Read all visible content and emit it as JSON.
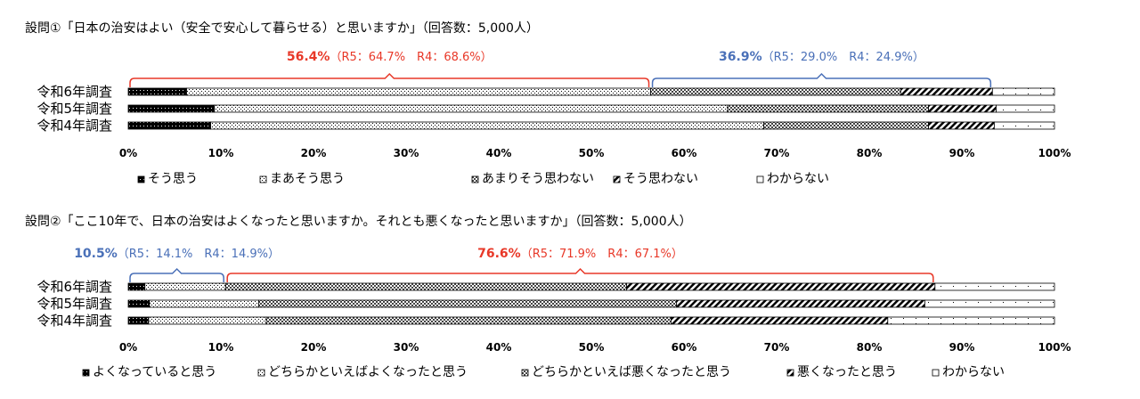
{
  "chart_data": [
    {
      "type": "bar",
      "stacked": true,
      "orientation": "horizontal",
      "title": "設問①「日本の治安はよい（安全で安心して暮らせる）と思いますか」（回答数：5,000人）",
      "categories": [
        "令和6年調査",
        "令和5年調査",
        "令和4年調査"
      ],
      "series": [
        {
          "name": "そう思う",
          "values": [
            6.3,
            9.3,
            8.9
          ]
        },
        {
          "name": "まあそう思う",
          "values": [
            50.1,
            55.4,
            59.7
          ]
        },
        {
          "name": "あまりそう思わない",
          "values": [
            27.0,
            21.7,
            17.8
          ]
        },
        {
          "name": "そう思わない",
          "values": [
            9.9,
            7.3,
            7.1
          ]
        },
        {
          "name": "わからない",
          "values": [
            6.7,
            6.3,
            6.5
          ]
        }
      ],
      "xlim": [
        0,
        100
      ],
      "tick_labels": [
        "0%",
        "10%",
        "20%",
        "30%",
        "40%",
        "50%",
        "60%",
        "70%",
        "80%",
        "90%",
        "100%"
      ],
      "annotations": [
        {
          "main": "56.4%",
          "sub": "（R5：64.7%　R4：68.6%）",
          "from": 0,
          "to": 56.4,
          "color": "#e83828"
        },
        {
          "main": "36.9%",
          "sub": "（R5：29.0%　R4：24.9%）",
          "from": 56.4,
          "to": 93.3,
          "color": "#4a70b8"
        }
      ],
      "legend_position": "bottom"
    },
    {
      "type": "bar",
      "stacked": true,
      "orientation": "horizontal",
      "title": "設問②「ここ10年で、日本の治安はよくなったと思いますか。それとも悪くなったと思いますか」（回答数：5,000人）",
      "categories": [
        "令和6年調査",
        "令和5年調査",
        "令和4年調査"
      ],
      "series": [
        {
          "name": "よくなっていると思う",
          "values": [
            1.8,
            2.3,
            2.2
          ]
        },
        {
          "name": "どちらかといえばよくなったと思う",
          "values": [
            8.7,
            11.8,
            12.7
          ]
        },
        {
          "name": "どちらかといえば悪くなったと思う",
          "values": [
            43.3,
            45.1,
            43.7
          ]
        },
        {
          "name": "悪くなったと思う",
          "values": [
            33.3,
            26.8,
            23.4
          ]
        },
        {
          "name": "わからない",
          "values": [
            12.9,
            14.0,
            18.0
          ]
        }
      ],
      "xlim": [
        0,
        100
      ],
      "tick_labels": [
        "0%",
        "10%",
        "20%",
        "30%",
        "40%",
        "50%",
        "60%",
        "70%",
        "80%",
        "90%",
        "100%"
      ],
      "annotations": [
        {
          "main": "10.5%",
          "sub": "（R5：14.1%　R4：14.9%）",
          "from": 0,
          "to": 10.5,
          "color": "#4a70b8"
        },
        {
          "main": "76.6%",
          "sub": "（R5：71.9%　R4：67.1%）",
          "from": 10.5,
          "to": 87.1,
          "color": "#e83828"
        }
      ],
      "legend_position": "bottom"
    }
  ]
}
